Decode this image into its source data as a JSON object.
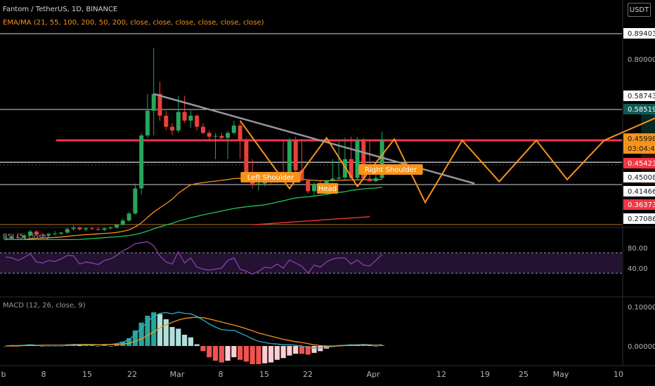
{
  "header": {
    "title": "Fantom / TetherUS, 1D, BINANCE",
    "ema_legend": "EMA/MA (21, 55, 100, 200, 50, 200, close, close, close, close, close, close)",
    "currency_button": "USDT"
  },
  "rsi_legend": "RSI (5, close)",
  "macd_legend": "MACD (12, 26, close, 9)",
  "chart_data": [
    {
      "type": "candlestick",
      "panel": "price",
      "x_ticks": [
        "b",
        "8",
        "15",
        "22",
        "Mar",
        "8",
        "15",
        "22",
        "Apr",
        "12",
        "19",
        "25",
        "May",
        "10"
      ],
      "price_scale_labels": [
        "0.80000"
      ],
      "price_tags": [
        {
          "label": "0.89403",
          "style": "white"
        },
        {
          "label": "0.58743",
          "style": "white"
        },
        {
          "label": "0.58519",
          "style": "teal"
        },
        {
          "label": "0.45998",
          "style": "orange"
        },
        {
          "label": "03:04:43",
          "style": "orange-time"
        },
        {
          "label": "0.45423",
          "style": "red"
        },
        {
          "label": "0.45008",
          "style": "white"
        },
        {
          "label": "0.41466",
          "style": "white"
        },
        {
          "label": "0.36373",
          "style": "red"
        },
        {
          "label": "0.27086",
          "style": "white"
        }
      ],
      "horizontal_lines": [
        0.89403,
        0.58519,
        0.45998,
        0.41466,
        0.36373,
        0.27086
      ],
      "annotations": [
        "Left Shoulder",
        "Head",
        "Right Shoulder"
      ],
      "candles": [
        {
          "o": 0.2,
          "h": 0.215,
          "l": 0.195,
          "c": 0.205
        },
        {
          "o": 0.205,
          "h": 0.222,
          "l": 0.2,
          "c": 0.212
        },
        {
          "o": 0.212,
          "h": 0.23,
          "l": 0.203,
          "c": 0.209
        },
        {
          "o": 0.209,
          "h": 0.228,
          "l": 0.204,
          "c": 0.22
        },
        {
          "o": 0.22,
          "h": 0.246,
          "l": 0.214,
          "c": 0.238
        },
        {
          "o": 0.238,
          "h": 0.244,
          "l": 0.218,
          "c": 0.224
        },
        {
          "o": 0.224,
          "h": 0.232,
          "l": 0.212,
          "c": 0.22
        },
        {
          "o": 0.22,
          "h": 0.232,
          "l": 0.214,
          "c": 0.226
        },
        {
          "o": 0.226,
          "h": 0.24,
          "l": 0.22,
          "c": 0.228
        },
        {
          "o": 0.228,
          "h": 0.236,
          "l": 0.221,
          "c": 0.233
        },
        {
          "o": 0.233,
          "h": 0.256,
          "l": 0.226,
          "c": 0.25
        },
        {
          "o": 0.25,
          "h": 0.266,
          "l": 0.24,
          "c": 0.256
        },
        {
          "o": 0.256,
          "h": 0.262,
          "l": 0.243,
          "c": 0.248
        },
        {
          "o": 0.248,
          "h": 0.258,
          "l": 0.24,
          "c": 0.253
        },
        {
          "o": 0.253,
          "h": 0.262,
          "l": 0.246,
          "c": 0.25
        },
        {
          "o": 0.25,
          "h": 0.26,
          "l": 0.242,
          "c": 0.246
        },
        {
          "o": 0.246,
          "h": 0.258,
          "l": 0.24,
          "c": 0.253
        },
        {
          "o": 0.253,
          "h": 0.262,
          "l": 0.247,
          "c": 0.257
        },
        {
          "o": 0.257,
          "h": 0.274,
          "l": 0.25,
          "c": 0.27
        },
        {
          "o": 0.27,
          "h": 0.3,
          "l": 0.265,
          "c": 0.29
        },
        {
          "o": 0.29,
          "h": 0.33,
          "l": 0.285,
          "c": 0.323
        },
        {
          "o": 0.323,
          "h": 0.42,
          "l": 0.318,
          "c": 0.405
        },
        {
          "o": 0.405,
          "h": 0.49,
          "l": 0.39,
          "c": 0.48
        },
        {
          "o": 0.48,
          "h": 0.6,
          "l": 0.47,
          "c": 0.58
        },
        {
          "o": 0.58,
          "h": 0.84,
          "l": 0.48,
          "c": 0.6
        },
        {
          "o": 0.6,
          "h": 0.67,
          "l": 0.54,
          "c": 0.56
        },
        {
          "o": 0.56,
          "h": 0.58,
          "l": 0.5,
          "c": 0.515
        },
        {
          "o": 0.515,
          "h": 0.53,
          "l": 0.48,
          "c": 0.5
        },
        {
          "o": 0.5,
          "h": 0.59,
          "l": 0.49,
          "c": 0.575
        },
        {
          "o": 0.575,
          "h": 0.59,
          "l": 0.53,
          "c": 0.54
        },
        {
          "o": 0.54,
          "h": 0.58,
          "l": 0.51,
          "c": 0.56
        },
        {
          "o": 0.56,
          "h": 0.565,
          "l": 0.5,
          "c": 0.515
        },
        {
          "o": 0.515,
          "h": 0.53,
          "l": 0.485,
          "c": 0.49
        },
        {
          "o": 0.49,
          "h": 0.5,
          "l": 0.46,
          "c": 0.475
        },
        {
          "o": 0.475,
          "h": 0.49,
          "l": 0.455,
          "c": 0.478
        },
        {
          "o": 0.478,
          "h": 0.492,
          "l": 0.46,
          "c": 0.47
        },
        {
          "o": 0.47,
          "h": 0.5,
          "l": 0.455,
          "c": 0.49
        },
        {
          "o": 0.49,
          "h": 0.54,
          "l": 0.485,
          "c": 0.52
        },
        {
          "o": 0.52,
          "h": 0.53,
          "l": 0.455,
          "c": 0.46
        },
        {
          "o": 0.46,
          "h": 0.47,
          "l": 0.43,
          "c": 0.44
        },
        {
          "o": 0.44,
          "h": 0.455,
          "l": 0.405,
          "c": 0.415
        },
        {
          "o": 0.415,
          "h": 0.43,
          "l": 0.4,
          "c": 0.42
        },
        {
          "o": 0.42,
          "h": 0.44,
          "l": 0.41,
          "c": 0.435
        },
        {
          "o": 0.435,
          "h": 0.45,
          "l": 0.42,
          "c": 0.428
        },
        {
          "o": 0.428,
          "h": 0.452,
          "l": 0.422,
          "c": 0.447
        },
        {
          "o": 0.447,
          "h": 0.46,
          "l": 0.432,
          "c": 0.438
        },
        {
          "o": 0.438,
          "h": 0.47,
          "l": 0.43,
          "c": 0.46
        },
        {
          "o": 0.46,
          "h": 0.475,
          "l": 0.445,
          "c": 0.452
        },
        {
          "o": 0.452,
          "h": 0.465,
          "l": 0.43,
          "c": 0.435
        },
        {
          "o": 0.435,
          "h": 0.44,
          "l": 0.392,
          "c": 0.398
        },
        {
          "o": 0.398,
          "h": 0.425,
          "l": 0.388,
          "c": 0.418
        },
        {
          "o": 0.418,
          "h": 0.432,
          "l": 0.405,
          "c": 0.41
        },
        {
          "o": 0.41,
          "h": 0.44,
          "l": 0.405,
          "c": 0.435
        },
        {
          "o": 0.435,
          "h": 0.455,
          "l": 0.425,
          "c": 0.445
        },
        {
          "o": 0.445,
          "h": 0.46,
          "l": 0.435,
          "c": 0.45
        },
        {
          "o": 0.45,
          "h": 0.47,
          "l": 0.44,
          "c": 0.455
        },
        {
          "o": 0.455,
          "h": 0.475,
          "l": 0.445,
          "c": 0.448
        },
        {
          "o": 0.448,
          "h": 0.472,
          "l": 0.44,
          "c": 0.46
        },
        {
          "o": 0.46,
          "h": 0.47,
          "l": 0.438,
          "c": 0.445
        },
        {
          "o": 0.445,
          "h": 0.462,
          "l": 0.43,
          "c": 0.432
        },
        {
          "o": 0.432,
          "h": 0.452,
          "l": 0.425,
          "c": 0.448
        },
        {
          "o": 0.448,
          "h": 0.496,
          "l": 0.442,
          "c": 0.46
        }
      ],
      "moving_averages": [
        {
          "name": "EMA 21",
          "color": "#f7931a",
          "values": [
            0.2,
            0.2,
            0.2,
            0.201,
            0.204,
            0.206,
            0.207,
            0.209,
            0.21,
            0.212,
            0.215,
            0.218,
            0.221,
            0.223,
            0.225,
            0.227,
            0.229,
            0.231,
            0.234,
            0.239,
            0.246,
            0.26,
            0.279,
            0.305,
            0.33,
            0.35,
            0.367,
            0.378,
            0.393,
            0.404,
            0.414,
            0.42,
            0.425,
            0.429,
            0.432,
            0.436,
            0.44,
            0.445,
            0.446,
            0.446,
            0.444,
            0.442,
            0.442,
            0.441,
            0.442,
            0.441,
            0.443,
            0.444,
            0.443,
            0.438,
            0.436,
            0.434,
            0.434,
            0.435,
            0.436,
            0.437,
            0.438,
            0.438,
            0.439,
            0.439,
            0.439,
            0.441
          ]
        },
        {
          "name": "EMA 55",
          "color": "#22c55e",
          "values": [
            0.2,
            0.2,
            0.2,
            0.2,
            0.2,
            0.2,
            0.2,
            0.2,
            0.2,
            0.2,
            0.2,
            0.2,
            0.201,
            0.203,
            0.205,
            0.207,
            0.209,
            0.211,
            0.213,
            0.216,
            0.219,
            0.224,
            0.231,
            0.24,
            0.251,
            0.26,
            0.269,
            0.277,
            0.287,
            0.295,
            0.303,
            0.31,
            0.317,
            0.323,
            0.329,
            0.335,
            0.341,
            0.347,
            0.351,
            0.355,
            0.358,
            0.361,
            0.364,
            0.367,
            0.371,
            0.374,
            0.378,
            0.381,
            0.383,
            0.384,
            0.386,
            0.388,
            0.39,
            0.393,
            0.395,
            0.397,
            0.4,
            0.402,
            0.404,
            0.405,
            0.406,
            0.408
          ]
        },
        {
          "name": "MA 200",
          "color": "#e0342f",
          "values": [
            null,
            null,
            null,
            null,
            null,
            null,
            null,
            null,
            null,
            null,
            null,
            null,
            null,
            null,
            null,
            null,
            null,
            null,
            null,
            null,
            null,
            null,
            null,
            null,
            null,
            null,
            null,
            null,
            null,
            null,
            null,
            null,
            null,
            null,
            null,
            null,
            null,
            null,
            null,
            null,
            0.27,
            0.272,
            0.274,
            0.276,
            0.278,
            0.28,
            0.282,
            0.284,
            0.286,
            0.288,
            0.29,
            0.292,
            0.294,
            0.296,
            0.298,
            0.3,
            0.302,
            0.304,
            0.306,
            0.308,
            null,
            null
          ]
        }
      ],
      "drawings": {
        "trendline": {
          "from": {
            "bar": 24,
            "price": 0.6
          },
          "to": {
            "bar": 76,
            "price": 0.42
          },
          "color": "#9598a1"
        },
        "zigzag": [
          {
            "bar": 38,
            "price": 0.54
          },
          {
            "bar": 46,
            "price": 0.405
          },
          {
            "bar": 52,
            "price": 0.47
          },
          {
            "bar": 57,
            "price": 0.41
          },
          {
            "bar": 63,
            "price": 0.465
          },
          {
            "bar": 68,
            "price": 0.37
          },
          {
            "bar": 74,
            "price": 0.46
          },
          {
            "bar": 80,
            "price": 0.43
          },
          {
            "bar": 86,
            "price": 0.46
          },
          {
            "bar": 91,
            "price": 0.44
          },
          {
            "bar": 97,
            "price": 0.46
          },
          {
            "bar": 108,
            "price": 0.58
          }
        ],
        "target_box": {
          "bar_from": 103,
          "bar_to": 139,
          "top": 0.58519,
          "mid": 0.45998,
          "bottom": 0.41466
        }
      }
    },
    {
      "type": "line",
      "panel": "rsi",
      "name": "RSI (5, close)",
      "y_ticks": [
        "80.00",
        "40.00"
      ],
      "bands": [
        70,
        30
      ],
      "values": [
        62,
        60,
        55,
        61,
        68,
        52,
        50,
        55,
        53,
        58,
        65,
        64,
        48,
        52,
        50,
        47,
        55,
        58,
        65,
        74,
        80,
        88,
        90,
        92,
        84,
        64,
        52,
        48,
        72,
        50,
        60,
        42,
        38,
        36,
        38,
        40,
        55,
        60,
        38,
        34,
        28,
        34,
        42,
        40,
        48,
        40,
        56,
        50,
        44,
        30,
        46,
        42,
        52,
        58,
        60,
        60,
        48,
        56,
        46,
        44,
        55,
        67
      ]
    },
    {
      "type": "line",
      "panel": "macd",
      "name": "MACD (12, 26, close, 9)",
      "y_ticks": [
        "0.10000",
        "0.00000"
      ],
      "macd": [
        0.0,
        0.001,
        0.001,
        0.002,
        0.003,
        0.002,
        0.002,
        0.002,
        0.002,
        0.002,
        0.003,
        0.004,
        0.004,
        0.004,
        0.004,
        0.003,
        0.004,
        0.004,
        0.006,
        0.01,
        0.016,
        0.03,
        0.045,
        0.062,
        0.075,
        0.083,
        0.085,
        0.082,
        0.086,
        0.083,
        0.082,
        0.075,
        0.066,
        0.056,
        0.048,
        0.042,
        0.04,
        0.04,
        0.033,
        0.026,
        0.018,
        0.012,
        0.009,
        0.006,
        0.005,
        0.003,
        0.003,
        0.002,
        0.0,
        -0.004,
        -0.005,
        -0.005,
        -0.003,
        -0.001,
        0.001,
        0.002,
        0.003,
        0.003,
        0.004,
        0.003,
        0.002,
        0.003
      ],
      "signal": [
        0.0,
        0.0,
        0.0,
        0.001,
        0.001,
        0.001,
        0.002,
        0.002,
        0.002,
        0.002,
        0.002,
        0.002,
        0.003,
        0.003,
        0.003,
        0.003,
        0.003,
        0.004,
        0.004,
        0.005,
        0.007,
        0.012,
        0.018,
        0.027,
        0.036,
        0.046,
        0.054,
        0.06,
        0.066,
        0.07,
        0.072,
        0.073,
        0.072,
        0.069,
        0.065,
        0.061,
        0.057,
        0.053,
        0.049,
        0.044,
        0.039,
        0.033,
        0.029,
        0.025,
        0.021,
        0.017,
        0.014,
        0.011,
        0.009,
        0.006,
        0.003,
        0.001,
        0.0,
        0.0,
        0.0,
        0.001,
        0.001,
        0.002,
        0.002,
        0.002,
        0.002,
        0.002
      ]
    }
  ]
}
